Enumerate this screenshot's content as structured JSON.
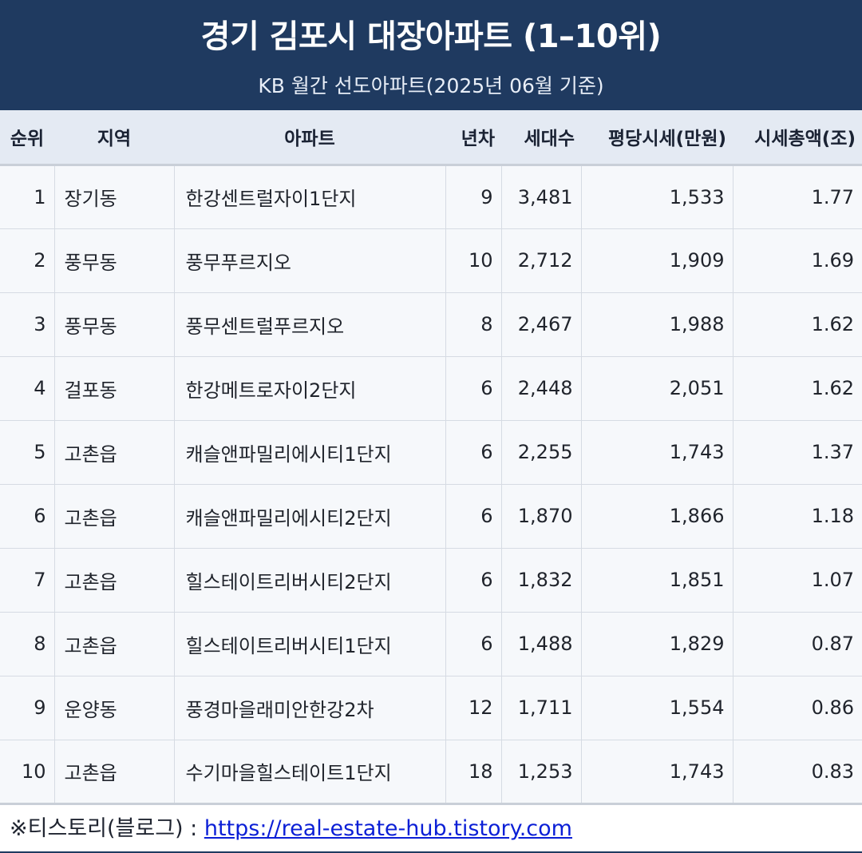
{
  "title": "경기 김포시 대장아파트 (1–10위)",
  "subtitle": "KB 월간 선도아파트(2025년 06월 기준)",
  "columns": [
    "순위",
    "지역",
    "아파트",
    "년차",
    "세대수",
    "평당시세(만원)",
    "시세총액(조)"
  ],
  "rows": [
    {
      "rank": "1",
      "region": "장기동",
      "apt": "한강센트럴자이1단지",
      "years": "9",
      "units": "3,481",
      "price": "1,533",
      "total": "1.77"
    },
    {
      "rank": "2",
      "region": "풍무동",
      "apt": "풍무푸르지오",
      "years": "10",
      "units": "2,712",
      "price": "1,909",
      "total": "1.69"
    },
    {
      "rank": "3",
      "region": "풍무동",
      "apt": "풍무센트럴푸르지오",
      "years": "8",
      "units": "2,467",
      "price": "1,988",
      "total": "1.62"
    },
    {
      "rank": "4",
      "region": "걸포동",
      "apt": "한강메트로자이2단지",
      "years": "6",
      "units": "2,448",
      "price": "2,051",
      "total": "1.62"
    },
    {
      "rank": "5",
      "region": "고촌읍",
      "apt": "캐슬앤파밀리에시티1단지",
      "years": "6",
      "units": "2,255",
      "price": "1,743",
      "total": "1.37"
    },
    {
      "rank": "6",
      "region": "고촌읍",
      "apt": "캐슬앤파밀리에시티2단지",
      "years": "6",
      "units": "1,870",
      "price": "1,866",
      "total": "1.18"
    },
    {
      "rank": "7",
      "region": "고촌읍",
      "apt": "힐스테이트리버시티2단지",
      "years": "6",
      "units": "1,832",
      "price": "1,851",
      "total": "1.07"
    },
    {
      "rank": "8",
      "region": "고촌읍",
      "apt": "힐스테이트리버시티1단지",
      "years": "6",
      "units": "1,488",
      "price": "1,829",
      "total": "0.87"
    },
    {
      "rank": "9",
      "region": "운양동",
      "apt": "풍경마을래미안한강2차",
      "years": "12",
      "units": "1,711",
      "price": "1,554",
      "total": "0.86"
    },
    {
      "rank": "10",
      "region": "고촌읍",
      "apt": "수기마을힐스테이트1단지",
      "years": "18",
      "units": "1,253",
      "price": "1,743",
      "total": "0.83"
    }
  ],
  "footer": {
    "prefix": "※티스토리(블로그) : ",
    "link_text": "https://real-estate-hub.tistory.com",
    "link_href": "https://real-estate-hub.tistory.com"
  },
  "colors": {
    "header_bg": "#1f3a60",
    "table_header_bg": "#e4eaf3",
    "row_bg": "#f6f8fb",
    "link": "#0b1fd6"
  }
}
